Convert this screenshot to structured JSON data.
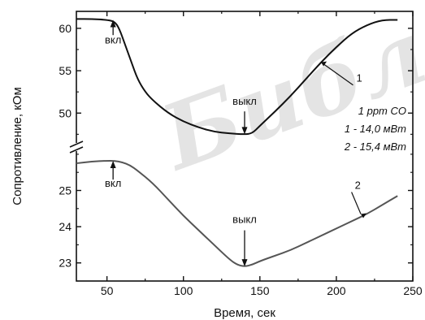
{
  "chart_data": {
    "type": "line",
    "xlabel": "Время, сек",
    "ylabel": "Сопротивление, кОм",
    "xlim": [
      30,
      250
    ],
    "x_ticks": [
      50,
      100,
      150,
      200,
      250
    ],
    "axis_break": true,
    "upper_panel": {
      "ylim": [
        46,
        62
      ],
      "y_ticks": [
        50,
        55,
        60
      ]
    },
    "lower_panel": {
      "ylim": [
        22.5,
        26.2
      ],
      "y_ticks": [
        23,
        24,
        25
      ]
    },
    "legend_lines": [
      "1 ppm CO",
      "1 - 14,0 мВт",
      "2 - 15,4 мВт"
    ],
    "watermark": "Библ",
    "series": [
      {
        "name": "1",
        "panel": "upper",
        "x": [
          30,
          40,
          50,
          55,
          58,
          62,
          66,
          70,
          75,
          80,
          90,
          100,
          110,
          120,
          130,
          140,
          145,
          150,
          160,
          170,
          180,
          190,
          200,
          210,
          220,
          230,
          240
        ],
        "y": [
          61.1,
          61.1,
          61.0,
          60.8,
          60.0,
          58.0,
          56.0,
          54.0,
          52.5,
          51.5,
          50.0,
          49.0,
          48.3,
          47.8,
          47.6,
          47.5,
          47.6,
          48.5,
          50.2,
          52.0,
          54.0,
          56.0,
          57.8,
          59.4,
          60.4,
          61.0,
          61.0
        ],
        "label": "1",
        "label_x": 212,
        "label_y": 53.5,
        "arrow_target_x": 190,
        "arrow_target_y": 56.0
      },
      {
        "name": "2",
        "panel": "lower",
        "x": [
          30,
          40,
          50,
          55,
          60,
          65,
          70,
          80,
          90,
          100,
          110,
          120,
          130,
          135,
          140,
          145,
          150,
          160,
          170,
          180,
          190,
          200,
          210,
          220,
          230,
          240
        ],
        "y": [
          25.75,
          25.8,
          25.82,
          25.82,
          25.78,
          25.7,
          25.55,
          25.2,
          24.75,
          24.3,
          23.9,
          23.5,
          23.1,
          22.95,
          22.9,
          22.95,
          23.05,
          23.2,
          23.35,
          23.55,
          23.75,
          23.95,
          24.15,
          24.35,
          24.6,
          24.85
        ],
        "label": "2",
        "label_x": 211,
        "label_y": 25.0,
        "arrow_target_x": 216,
        "arrow_target_y": 24.35
      }
    ],
    "annotations": [
      {
        "text": "вкл",
        "panel": "upper",
        "x": 54,
        "y_text": 58.2,
        "arrow_from": 59.2,
        "arrow_to": 61.0
      },
      {
        "text": "выкл",
        "panel": "upper",
        "x": 140,
        "y_text": 51.0,
        "arrow_from": 50.2,
        "arrow_to": 47.5
      },
      {
        "text": "вкл",
        "panel": "lower",
        "x": 54,
        "y_text": 25.1,
        "arrow_from": 25.3,
        "arrow_to": 25.82
      },
      {
        "text": "выкл",
        "panel": "lower",
        "x": 140,
        "y_text": 24.1,
        "arrow_from": 23.9,
        "arrow_to": 22.9
      }
    ]
  }
}
